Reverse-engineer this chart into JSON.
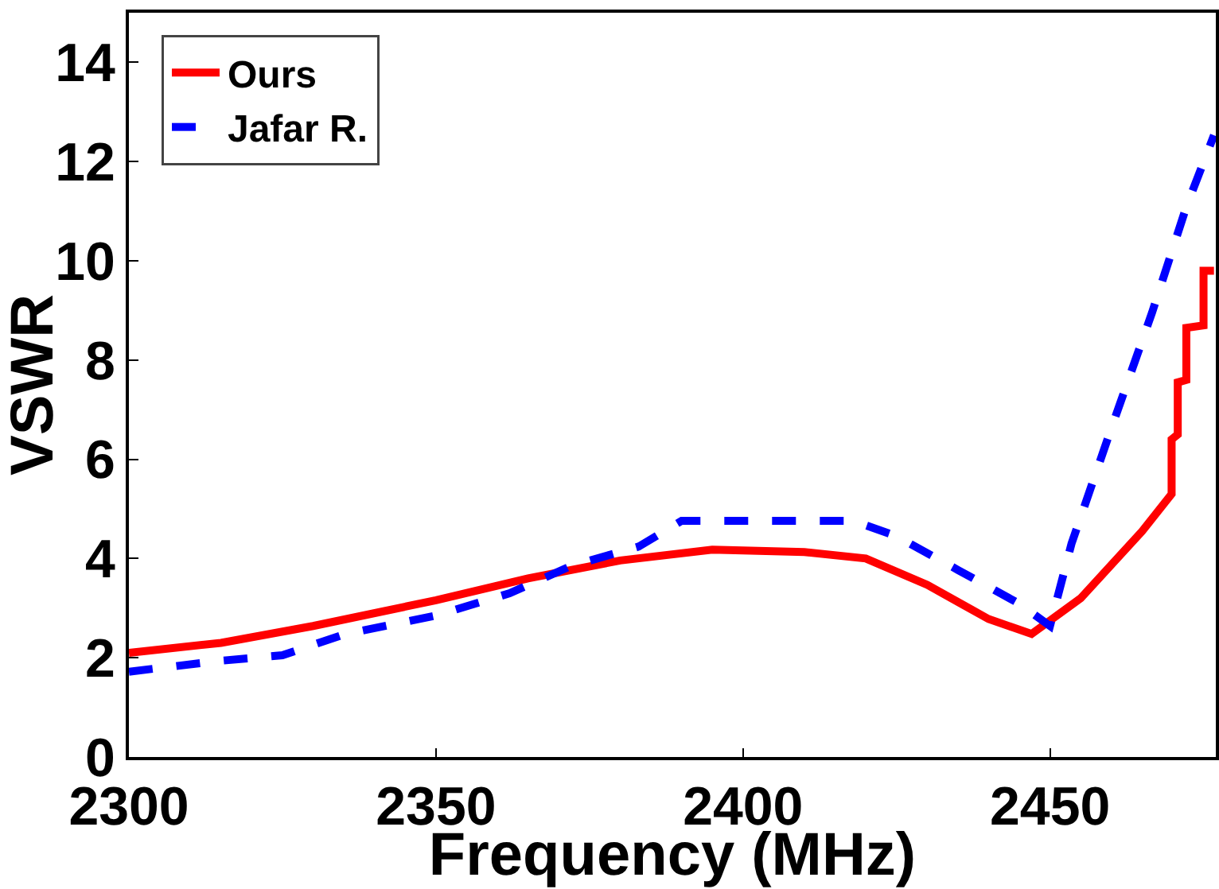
{
  "chart_data": {
    "type": "line",
    "xlabel": "Frequency (MHz)",
    "ylabel": "VSWR",
    "xlim": [
      2300,
      2477
    ],
    "xticks": [
      2300,
      2350,
      2400,
      2450
    ],
    "ylim": [
      0,
      15
    ],
    "yticks": [
      0,
      2,
      4,
      6,
      8,
      10,
      12,
      14
    ],
    "legend": "top left",
    "marker": "none",
    "series": [
      {
        "name": "Ours",
        "color": "#ff0000",
        "line_style": "solid",
        "x": [
          2300,
          2315,
          2330,
          2350,
          2365,
          2380,
          2395,
          2410,
          2420,
          2430,
          2440,
          2447,
          2455,
          2465,
          2469.8,
          2469.8,
          2470.8,
          2470.8,
          2472.2,
          2472.2,
          2475,
          2475,
          2476.7
        ],
        "values": [
          2.1,
          2.3,
          2.64,
          3.16,
          3.6,
          3.96,
          4.18,
          4.13,
          4.0,
          3.47,
          2.78,
          2.48,
          3.2,
          4.55,
          5.3,
          6.4,
          6.5,
          7.55,
          7.6,
          8.65,
          8.7,
          9.8,
          9.8
        ]
      },
      {
        "name": "Jafar R.",
        "color": "#0000ff",
        "line_style": "dashed",
        "x": [
          2300,
          2315,
          2325,
          2335,
          2350,
          2362,
          2372,
          2383,
          2390,
          2418,
          2425,
          2435,
          2445,
          2450,
          2453.5,
          2460,
          2466.6,
          2472.2,
          2476.7
        ],
        "values": [
          1.72,
          1.94,
          2.05,
          2.47,
          2.85,
          3.3,
          3.85,
          4.24,
          4.76,
          4.76,
          4.45,
          3.77,
          3.09,
          2.64,
          4.3,
          6.63,
          8.95,
          11.09,
          12.53
        ]
      }
    ]
  }
}
